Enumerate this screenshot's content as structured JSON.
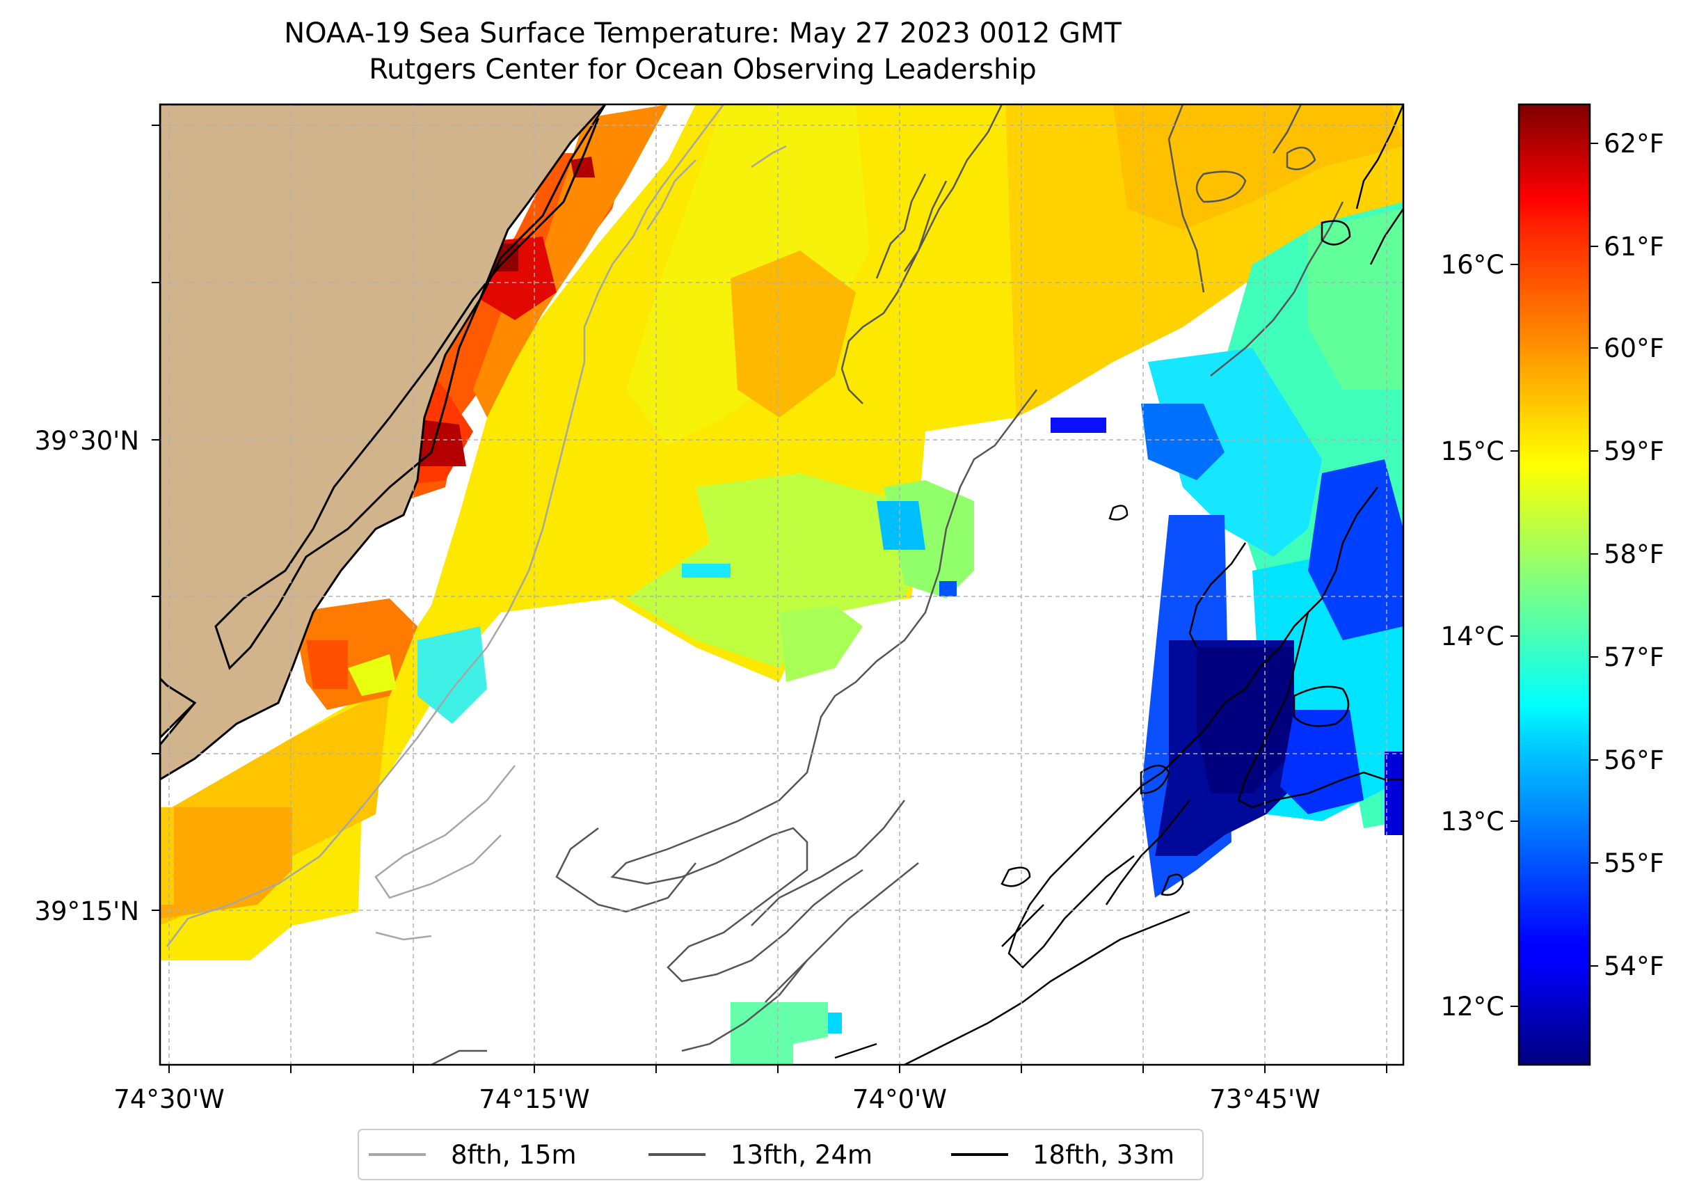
{
  "header": {
    "title": "NOAA-19 Sea Surface Temperature: May 27 2023 0012 GMT",
    "subtitle": "Rutgers Center for Ocean Observing Leadership"
  },
  "map": {
    "lon_ticks": [
      "74°30'W",
      "74°15'W",
      "74°0'W",
      "73°45'W"
    ],
    "lat_ticks": [
      "39°30'N",
      "39°15'N"
    ],
    "land_color": "#d2b48c",
    "grid": true
  },
  "legend": {
    "items": [
      {
        "label": "8fth, 15m",
        "color": "#a6a6a6"
      },
      {
        "label": "13fth, 24m",
        "color": "#555555"
      },
      {
        "label": "18fth, 33m",
        "color": "#000000"
      }
    ],
    "placement": "bottom-center"
  },
  "colorbar": {
    "colormap": "jet",
    "celsius_ticks": [
      "16°C",
      "15°C",
      "14°C",
      "13°C",
      "12°C"
    ],
    "fahrenheit_ticks": [
      "62°F",
      "61°F",
      "60°F",
      "59°F",
      "58°F",
      "57°F",
      "56°F",
      "55°F",
      "54°F"
    ]
  }
}
